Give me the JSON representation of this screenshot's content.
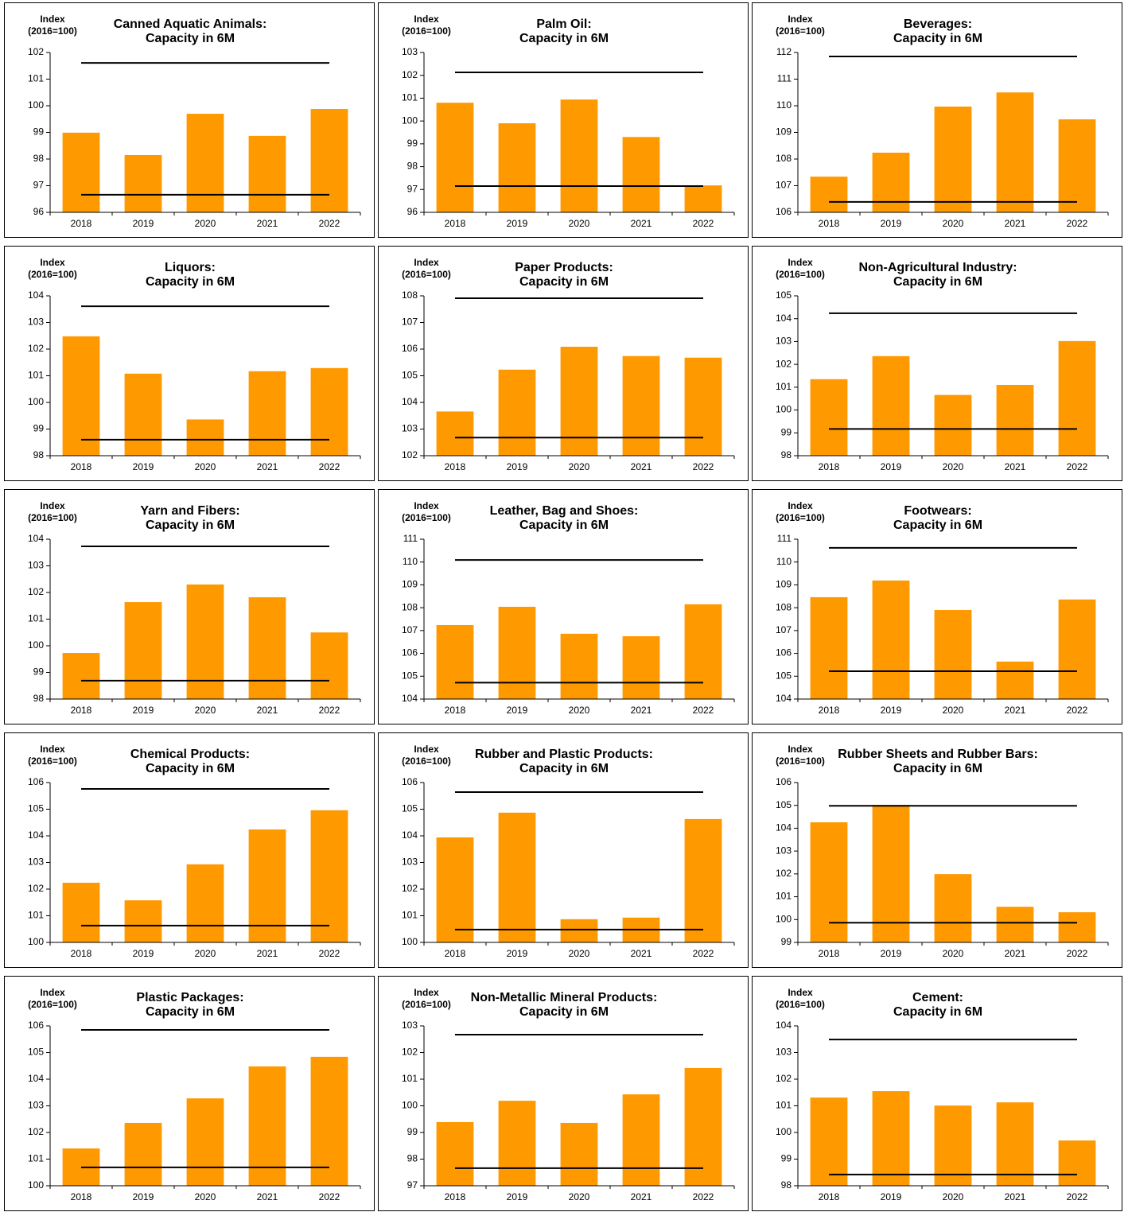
{
  "chart_data": [
    {
      "type": "bar",
      "title": "Canned Aquatic Animals:",
      "subtitle": "Capacity in 6M",
      "ylabel": [
        "Index",
        "(2016=100)"
      ],
      "categories": [
        "2018",
        "2019",
        "2020",
        "2021",
        "2022"
      ],
      "values": [
        98.99,
        98.15,
        99.7,
        98.87,
        99.88
      ],
      "color": "#ff9900",
      "ylim": [
        96,
        102
      ],
      "yticks": [
        96,
        97,
        98,
        99,
        100,
        101,
        102
      ],
      "reference_lines": [
        101.61,
        96.66
      ],
      "line_color": "#000000"
    },
    {
      "type": "bar",
      "title": "Palm Oil:",
      "subtitle": "Capacity in 6M",
      "ylabel": [
        "Index",
        "(2016=100)"
      ],
      "categories": [
        "2018",
        "2019",
        "2020",
        "2021",
        "2022"
      ],
      "values": [
        100.8,
        99.9,
        100.94,
        99.3,
        97.18
      ],
      "color": "#ff9900",
      "ylim": [
        96,
        103
      ],
      "yticks": [
        96,
        97,
        98,
        99,
        100,
        101,
        102,
        103
      ],
      "reference_lines": [
        102.13,
        97.15
      ],
      "line_color": "#000000"
    },
    {
      "type": "bar",
      "title": "Beverages:",
      "subtitle": "Capacity in 6M",
      "ylabel": [
        "Index",
        "(2016=100)"
      ],
      "categories": [
        "2018",
        "2019",
        "2020",
        "2021",
        "2022"
      ],
      "values": [
        107.34,
        108.24,
        109.97,
        110.5,
        109.49
      ],
      "color": "#ff9900",
      "ylim": [
        106,
        112
      ],
      "yticks": [
        106,
        107,
        108,
        109,
        110,
        111,
        112
      ],
      "reference_lines": [
        111.85,
        106.39
      ],
      "line_color": "#000000"
    },
    {
      "type": "bar",
      "title": "Liquors:",
      "subtitle": "Capacity in 6M",
      "ylabel": [
        "Index",
        "(2016=100)"
      ],
      "categories": [
        "2018",
        "2019",
        "2020",
        "2021",
        "2022"
      ],
      "values": [
        102.48,
        101.08,
        99.36,
        101.17,
        101.29
      ],
      "color": "#ff9900",
      "ylim": [
        98,
        104
      ],
      "yticks": [
        98,
        99,
        100,
        101,
        102,
        103,
        104
      ],
      "reference_lines": [
        103.61,
        98.6
      ],
      "line_color": "#000000"
    },
    {
      "type": "bar",
      "title": "Paper Products:",
      "subtitle": "Capacity in 6M",
      "ylabel": [
        "Index",
        "(2016=100)"
      ],
      "categories": [
        "2018",
        "2019",
        "2020",
        "2021",
        "2022"
      ],
      "values": [
        103.66,
        105.23,
        106.09,
        105.74,
        105.68
      ],
      "color": "#ff9900",
      "ylim": [
        102,
        108
      ],
      "yticks": [
        102,
        103,
        104,
        105,
        106,
        107,
        108
      ],
      "reference_lines": [
        107.91,
        102.68
      ],
      "line_color": "#000000"
    },
    {
      "type": "bar",
      "title": "Non-Agricultural Industry:",
      "subtitle": "Capacity in 6M",
      "ylabel": [
        "Index",
        "(2016=100)"
      ],
      "categories": [
        "2018",
        "2019",
        "2020",
        "2021",
        "2022"
      ],
      "values": [
        101.35,
        102.36,
        100.66,
        101.1,
        103.02
      ],
      "color": "#ff9900",
      "ylim": [
        98,
        105
      ],
      "yticks": [
        98,
        99,
        100,
        101,
        102,
        103,
        104,
        105
      ],
      "reference_lines": [
        104.24,
        99.17
      ],
      "line_color": "#000000"
    },
    {
      "type": "bar",
      "title": "Yarn and Fibers:",
      "subtitle": "Capacity in 6M",
      "ylabel": [
        "Index",
        "(2016=100)"
      ],
      "categories": [
        "2018",
        "2019",
        "2020",
        "2021",
        "2022"
      ],
      "values": [
        99.73,
        101.64,
        102.3,
        101.82,
        100.5
      ],
      "color": "#ff9900",
      "ylim": [
        98,
        104
      ],
      "yticks": [
        98,
        99,
        100,
        101,
        102,
        103,
        104
      ],
      "reference_lines": [
        103.73,
        98.69
      ],
      "line_color": "#000000"
    },
    {
      "type": "bar",
      "title": "Leather, Bag and Shoes:",
      "subtitle": "Capacity in 6M",
      "ylabel": [
        "Index",
        "(2016=100)"
      ],
      "categories": [
        "2018",
        "2019",
        "2020",
        "2021",
        "2022"
      ],
      "values": [
        107.24,
        108.04,
        106.86,
        106.75,
        108.15
      ],
      "color": "#ff9900",
      "ylim": [
        104,
        111
      ],
      "yticks": [
        104,
        105,
        106,
        107,
        108,
        109,
        110,
        111
      ],
      "reference_lines": [
        110.09,
        104.72
      ],
      "line_color": "#000000"
    },
    {
      "type": "bar",
      "title": "Footwears:",
      "subtitle": "Capacity in 6M",
      "ylabel": [
        "Index",
        "(2016=100)"
      ],
      "categories": [
        "2018",
        "2019",
        "2020",
        "2021",
        "2022"
      ],
      "values": [
        108.46,
        109.19,
        107.9,
        105.64,
        108.36
      ],
      "color": "#ff9900",
      "ylim": [
        104,
        111
      ],
      "yticks": [
        104,
        105,
        106,
        107,
        108,
        109,
        110,
        111
      ],
      "reference_lines": [
        110.62,
        105.22
      ],
      "line_color": "#000000"
    },
    {
      "type": "bar",
      "title": "Chemical Products:",
      "subtitle": "Capacity in 6M",
      "ylabel": [
        "Index",
        "(2016=100)"
      ],
      "categories": [
        "2018",
        "2019",
        "2020",
        "2021",
        "2022"
      ],
      "values": [
        102.24,
        101.58,
        102.93,
        104.24,
        104.96
      ],
      "color": "#ff9900",
      "ylim": [
        100,
        106
      ],
      "yticks": [
        100,
        101,
        102,
        103,
        104,
        105,
        106
      ],
      "reference_lines": [
        105.76,
        100.63
      ],
      "line_color": "#000000"
    },
    {
      "type": "bar",
      "title": "Rubber and Plastic Products:",
      "subtitle": "Capacity in 6M",
      "ylabel": [
        "Index",
        "(2016=100)"
      ],
      "categories": [
        "2018",
        "2019",
        "2020",
        "2021",
        "2022"
      ],
      "values": [
        103.94,
        104.87,
        100.87,
        100.93,
        104.63
      ],
      "color": "#ff9900",
      "ylim": [
        100,
        106
      ],
      "yticks": [
        100,
        101,
        102,
        103,
        104,
        105,
        106
      ],
      "reference_lines": [
        105.64,
        100.48
      ],
      "line_color": "#000000"
    },
    {
      "type": "bar",
      "title": "Rubber Sheets and Rubber Bars:",
      "subtitle": "Capacity in 6M",
      "ylabel": [
        "Index",
        "(2016=100)"
      ],
      "categories": [
        "2018",
        "2019",
        "2020",
        "2021",
        "2022"
      ],
      "values": [
        104.26,
        105.02,
        101.99,
        100.56,
        100.32
      ],
      "color": "#ff9900",
      "ylim": [
        99,
        106
      ],
      "yticks": [
        99,
        100,
        101,
        102,
        103,
        104,
        105,
        106
      ],
      "reference_lines": [
        104.98,
        99.86
      ],
      "line_color": "#000000"
    },
    {
      "type": "bar",
      "title": "Plastic Packages:",
      "subtitle": "Capacity in 6M",
      "ylabel": [
        "Index",
        "(2016=100)"
      ],
      "categories": [
        "2018",
        "2019",
        "2020",
        "2021",
        "2022"
      ],
      "values": [
        101.4,
        102.36,
        103.28,
        104.48,
        104.84
      ],
      "color": "#ff9900",
      "ylim": [
        100,
        106
      ],
      "yticks": [
        100,
        101,
        102,
        103,
        104,
        105,
        106
      ],
      "reference_lines": [
        105.85,
        100.69
      ],
      "line_color": "#000000"
    },
    {
      "type": "bar",
      "title": "Non-Metallic Mineral Products:",
      "subtitle": "Capacity in 6M",
      "ylabel": [
        "Index",
        "(2016=100)"
      ],
      "categories": [
        "2018",
        "2019",
        "2020",
        "2021",
        "2022"
      ],
      "values": [
        99.39,
        100.19,
        99.36,
        100.43,
        101.42
      ],
      "color": "#ff9900",
      "ylim": [
        97,
        103
      ],
      "yticks": [
        97,
        98,
        99,
        100,
        101,
        102,
        103
      ],
      "reference_lines": [
        102.67,
        97.66
      ],
      "line_color": "#000000"
    },
    {
      "type": "bar",
      "title": "Cement:",
      "subtitle": "Capacity in 6M",
      "ylabel": [
        "Index",
        "(2016=100)"
      ],
      "categories": [
        "2018",
        "2019",
        "2020",
        "2021",
        "2022"
      ],
      "values": [
        101.31,
        101.55,
        101.01,
        101.13,
        99.7
      ],
      "color": "#ff9900",
      "ylim": [
        98,
        104
      ],
      "yticks": [
        98,
        99,
        100,
        101,
        102,
        103,
        104
      ],
      "reference_lines": [
        103.49,
        98.42
      ],
      "line_color": "#000000"
    }
  ]
}
